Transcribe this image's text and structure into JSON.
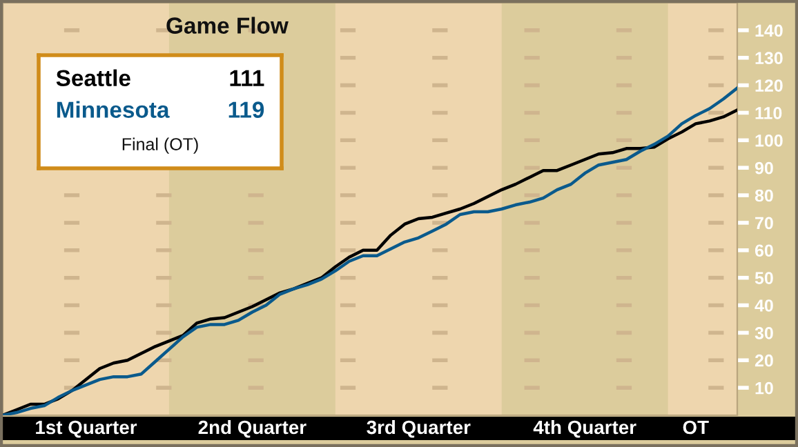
{
  "chart_data": {
    "type": "line",
    "title": "Game Flow",
    "categories": [
      null,
      null,
      null,
      null,
      null,
      null,
      "1st Quarter",
      null,
      null,
      null,
      null,
      null,
      null,
      null,
      null,
      null,
      null,
      null,
      "2nd Quarter",
      null,
      null,
      null,
      null,
      null,
      null,
      null,
      null,
      null,
      null,
      null,
      "3rd Quarter",
      null,
      null,
      null,
      null,
      null,
      null,
      null,
      null,
      null,
      null,
      null,
      "4th Quarter",
      null,
      null,
      null,
      null,
      null,
      null,
      null,
      "OT",
      null,
      null,
      null
    ],
    "ylim": [
      0,
      150
    ],
    "yticks": [
      10,
      20,
      30,
      40,
      50,
      60,
      70,
      80,
      90,
      100,
      110,
      120,
      130,
      140
    ],
    "grid": "y",
    "annotations": [
      "111",
      "119",
      "Final (OT)"
    ],
    "series": [
      {
        "name": "Seattle",
        "color": "#000000",
        "values": [
          0,
          2,
          4,
          4,
          6,
          9,
          13,
          17,
          19,
          20,
          22.5,
          25,
          27,
          29,
          33.5,
          35,
          35.5,
          37.5,
          39.5,
          42,
          44.5,
          46,
          48,
          50,
          54,
          57.5,
          60,
          60,
          65.5,
          69.5,
          71.5,
          72,
          73.5,
          75,
          77,
          79.5,
          82,
          84,
          86.5,
          89,
          89,
          91,
          93,
          95,
          95.5,
          97,
          97,
          97.5,
          100.5,
          103,
          106,
          107,
          108.5,
          111
        ]
      },
      {
        "name": "Minnesota",
        "color": "#0a5a8c",
        "values": [
          0,
          1,
          2.5,
          3.5,
          6.5,
          9,
          11,
          13,
          14,
          14,
          15,
          19.5,
          24,
          28.5,
          32,
          33,
          33,
          34.5,
          37.5,
          40,
          44,
          46,
          47.5,
          49.5,
          52.5,
          56,
          58,
          58,
          60.5,
          63,
          64.5,
          67,
          69.5,
          73,
          74,
          74,
          75,
          76.5,
          77.5,
          79,
          82,
          84,
          88,
          91,
          92,
          93,
          96,
          98.5,
          101.5,
          106,
          109,
          111.5,
          115,
          119
        ]
      }
    ]
  }
}
